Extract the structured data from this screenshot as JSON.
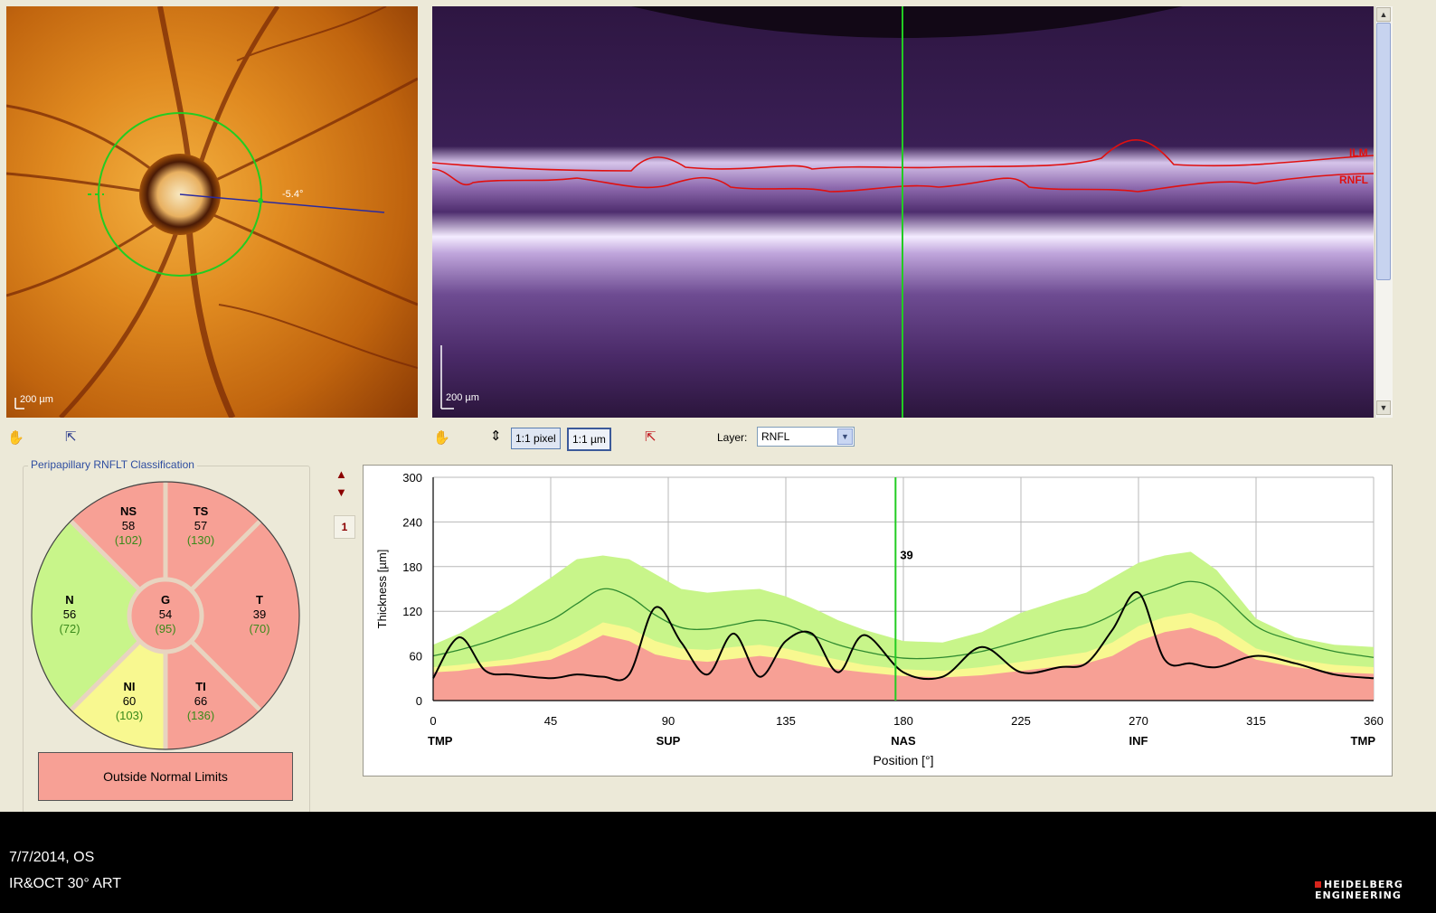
{
  "fundus": {
    "scale_label": "200 µm",
    "angle_label": "-5.4°"
  },
  "oct": {
    "scale_label": "200 µm",
    "ilm_label": "ILM",
    "rnfl_label": "RNFL"
  },
  "toolbar": {
    "pixel_button": "1:1 pixel",
    "um_button": "1:1 µm",
    "layer_label": "Layer:",
    "layer_value": "RNFL"
  },
  "classification": {
    "title": "Peripapillary RNFLT Classification",
    "sectors": [
      {
        "key": "NS",
        "value": "58",
        "norm": "(102)",
        "status": "red"
      },
      {
        "key": "TS",
        "value": "57",
        "norm": "(130)",
        "status": "red"
      },
      {
        "key": "N",
        "value": "56",
        "norm": "(72)",
        "status": "green"
      },
      {
        "key": "G",
        "value": "54",
        "norm": "(95)",
        "status": "red"
      },
      {
        "key": "T",
        "value": "39",
        "norm": "(70)",
        "status": "red"
      },
      {
        "key": "NI",
        "value": "60",
        "norm": "(103)",
        "status": "yellow"
      },
      {
        "key": "TI",
        "value": "66",
        "norm": "(136)",
        "status": "red"
      }
    ],
    "result": "Outside Normal Limits",
    "colors": {
      "red": "#f7a095",
      "green": "#c8f58a",
      "yellow": "#f8f890",
      "norm_text": "#3a8a1a"
    }
  },
  "page_number": "1",
  "chart_data": {
    "type": "line",
    "ylabel": "Thickness [µm]",
    "xlabel": "Position [°]",
    "xlim": [
      0,
      360
    ],
    "ylim": [
      0,
      300
    ],
    "x_ticks": [
      "0",
      "45",
      "90",
      "135",
      "180",
      "225",
      "270",
      "315",
      "360"
    ],
    "y_ticks": [
      "0",
      "60",
      "120",
      "180",
      "240",
      "300"
    ],
    "region_labels": [
      {
        "x": 0,
        "label": "TMP"
      },
      {
        "x": 90,
        "label": "SUP"
      },
      {
        "x": 180,
        "label": "NAS"
      },
      {
        "x": 270,
        "label": "INF"
      },
      {
        "x": 360,
        "label": "TMP"
      }
    ],
    "cursor": {
      "x": 177,
      "label": "39"
    },
    "x": [
      0,
      10,
      20,
      30,
      45,
      55,
      65,
      75,
      85,
      95,
      105,
      115,
      125,
      135,
      145,
      155,
      165,
      180,
      195,
      210,
      225,
      240,
      250,
      260,
      270,
      280,
      290,
      300,
      315,
      330,
      345,
      360
    ],
    "series": [
      {
        "role": "normal_upper",
        "values": [
          75,
          90,
          110,
          130,
          165,
          190,
          195,
          190,
          170,
          150,
          145,
          148,
          150,
          140,
          125,
          108,
          95,
          80,
          78,
          92,
          118,
          135,
          145,
          165,
          185,
          195,
          200,
          175,
          110,
          85,
          75,
          72
        ]
      },
      {
        "role": "borderline_upper",
        "values": [
          45,
          48,
          52,
          56,
          68,
          85,
          105,
          98,
          80,
          70,
          68,
          72,
          75,
          70,
          62,
          55,
          48,
          42,
          40,
          45,
          52,
          60,
          65,
          78,
          100,
          112,
          118,
          105,
          70,
          55,
          48,
          45
        ]
      },
      {
        "role": "lower_limit",
        "values": [
          38,
          40,
          45,
          48,
          55,
          70,
          88,
          80,
          62,
          55,
          52,
          56,
          60,
          56,
          48,
          42,
          38,
          33,
          31,
          34,
          40,
          46,
          50,
          60,
          80,
          92,
          98,
          85,
          55,
          45,
          38,
          36
        ]
      },
      {
        "role": "mean",
        "values": [
          60,
          68,
          78,
          90,
          108,
          130,
          150,
          140,
          115,
          98,
          96,
          102,
          108,
          102,
          88,
          75,
          66,
          57,
          58,
          66,
          80,
          94,
          100,
          115,
          138,
          150,
          160,
          148,
          100,
          80,
          66,
          58
        ]
      },
      {
        "role": "patient",
        "values": [
          30,
          85,
          40,
          35,
          30,
          35,
          32,
          35,
          125,
          78,
          35,
          90,
          32,
          80,
          90,
          38,
          88,
          38,
          32,
          72,
          38,
          45,
          50,
          95,
          145,
          55,
          50,
          45,
          60,
          50,
          35,
          30
        ]
      }
    ],
    "colors": {
      "normal": "#c8f58a",
      "borderline": "#f8f890",
      "outside": "#f7a095",
      "mean": "#2f8a2f",
      "patient": "#000000",
      "cursor": "#22cc22",
      "grid": "#b8b8b8"
    }
  },
  "footer": {
    "date": "7/7/2014, OS",
    "mode": "IR&OCT 30° ART",
    "brand_line1": "HEIDELBERG",
    "brand_line2": "ENGINEERING"
  }
}
